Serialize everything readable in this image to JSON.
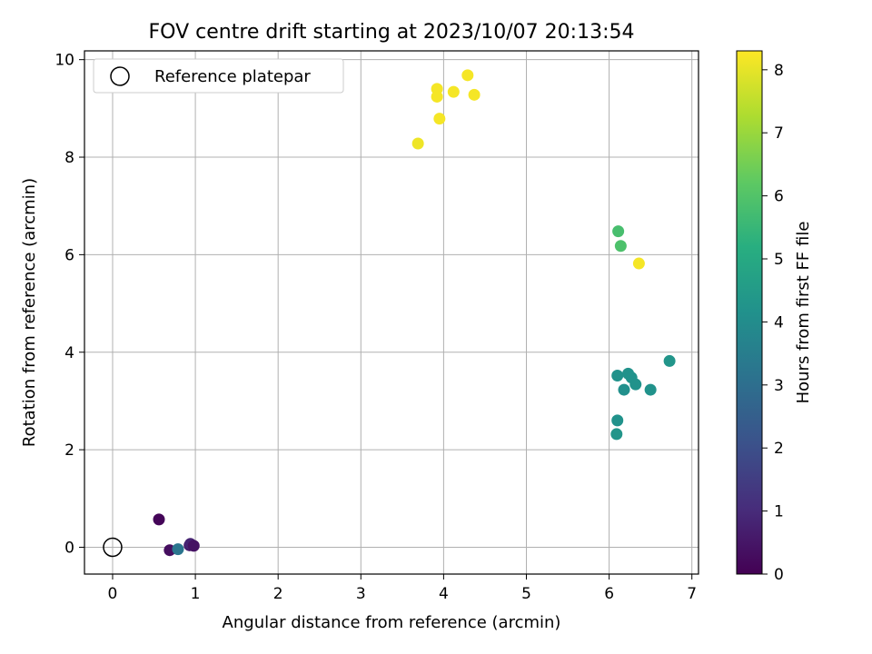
{
  "chart_data": {
    "type": "scatter",
    "title": "FOV centre drift starting at 2023/10/07 20:13:54",
    "xlabel": "Angular distance from reference (arcmin)",
    "ylabel": "Rotation from reference (arcmin)",
    "xlim": [
      -0.34,
      7.08
    ],
    "ylim": [
      -0.55,
      10.18
    ],
    "xticks": [
      0,
      1,
      2,
      3,
      4,
      5,
      6,
      7
    ],
    "yticks": [
      0,
      2,
      4,
      6,
      8,
      10
    ],
    "grid": true,
    "legend": {
      "placement": "upper-left",
      "entries": [
        "Reference platepar"
      ]
    },
    "reference_point": {
      "x": 0,
      "y": 0
    },
    "colorbar": {
      "label": "Hours from first FF file",
      "range": [
        0,
        8.3
      ],
      "ticks": [
        0,
        1,
        2,
        3,
        4,
        5,
        6,
        7,
        8
      ],
      "colormap": "viridis"
    },
    "points": [
      {
        "x": 0.56,
        "y": 0.57,
        "hours": 0.1
      },
      {
        "x": 0.69,
        "y": -0.06,
        "hours": 0.3
      },
      {
        "x": 0.93,
        "y": 0.04,
        "hours": 0.6
      },
      {
        "x": 0.94,
        "y": 0.07,
        "hours": 0.8
      },
      {
        "x": 0.98,
        "y": 0.03,
        "hours": 0.4
      },
      {
        "x": 0.79,
        "y": -0.04,
        "hours": 3.2
      },
      {
        "x": 6.09,
        "y": 2.32,
        "hours": 4.3
      },
      {
        "x": 6.1,
        "y": 2.6,
        "hours": 4.2
      },
      {
        "x": 6.1,
        "y": 3.52,
        "hours": 4.2
      },
      {
        "x": 6.18,
        "y": 3.23,
        "hours": 4.1
      },
      {
        "x": 6.23,
        "y": 3.56,
        "hours": 4.2
      },
      {
        "x": 6.27,
        "y": 3.48,
        "hours": 4.2
      },
      {
        "x": 6.32,
        "y": 3.34,
        "hours": 4.2
      },
      {
        "x": 6.5,
        "y": 3.23,
        "hours": 4.2
      },
      {
        "x": 6.73,
        "y": 3.82,
        "hours": 4.3
      },
      {
        "x": 6.11,
        "y": 6.48,
        "hours": 5.8
      },
      {
        "x": 6.14,
        "y": 6.18,
        "hours": 5.9
      },
      {
        "x": 6.36,
        "y": 5.82,
        "hours": 8.2
      },
      {
        "x": 3.69,
        "y": 8.28,
        "hours": 8.1
      },
      {
        "x": 3.92,
        "y": 9.4,
        "hours": 8.2
      },
      {
        "x": 3.92,
        "y": 9.24,
        "hours": 8.2
      },
      {
        "x": 3.95,
        "y": 8.79,
        "hours": 8.2
      },
      {
        "x": 4.12,
        "y": 9.34,
        "hours": 8.2
      },
      {
        "x": 4.29,
        "y": 9.68,
        "hours": 8.2
      },
      {
        "x": 4.37,
        "y": 9.28,
        "hours": 8.2
      }
    ]
  }
}
